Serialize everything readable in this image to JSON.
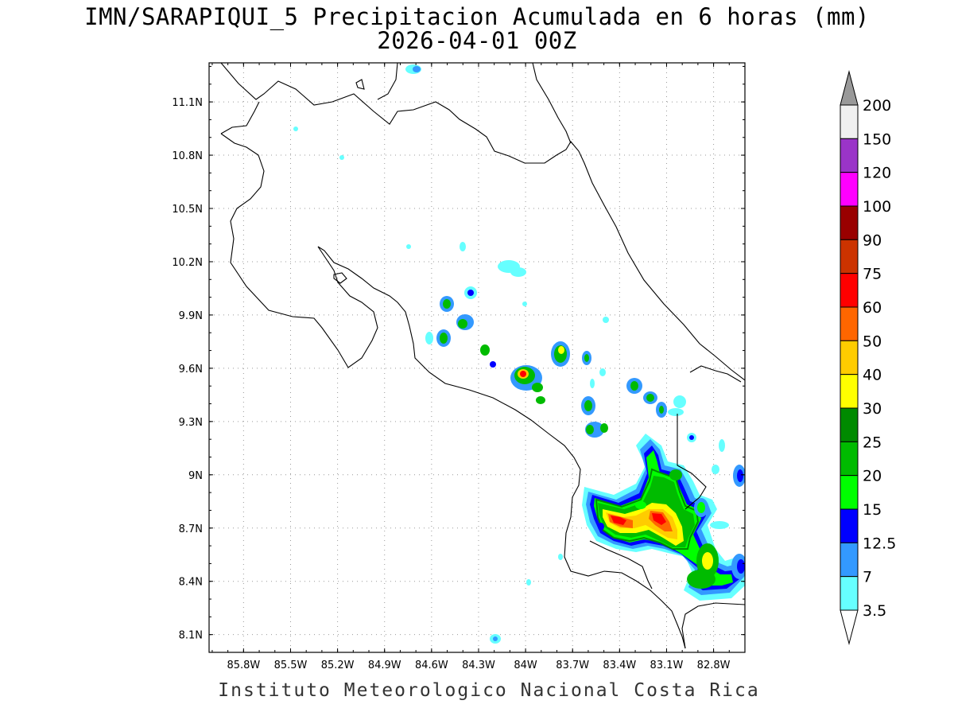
{
  "title_line1": "IMN/SARAPIQUI_5 Precipitacion Acumulada en 6 horas (mm)",
  "title_line2": "2026-04-01 00Z",
  "footer": "Instituto Meteorologico Nacional Costa Rica",
  "map": {
    "lon_range": [
      -86.02,
      -82.6
    ],
    "lat_range": [
      8.0,
      11.32
    ],
    "lat_ticks": [
      "11.1N",
      "10.8N",
      "10.5N",
      "10.2N",
      "9.9N",
      "9.6N",
      "9.3N",
      "9N",
      "8.7N",
      "8.4N",
      "8.1N"
    ],
    "lat_tick_values": [
      11.1,
      10.8,
      10.5,
      10.2,
      9.9,
      9.6,
      9.3,
      9.0,
      8.7,
      8.4,
      8.1
    ],
    "lon_ticks": [
      "85.8W",
      "85.5W",
      "85.2W",
      "84.9W",
      "84.6W",
      "84.3W",
      "84W",
      "83.7W",
      "83.4W",
      "83.1W",
      "82.8W"
    ],
    "lon_tick_values": [
      -85.8,
      -85.5,
      -85.2,
      -84.9,
      -84.6,
      -84.3,
      -84.0,
      -83.7,
      -83.4,
      -83.1,
      -82.8
    ],
    "gridlines": "dotted"
  },
  "colorbar": {
    "labels": [
      "200",
      "150",
      "120",
      "100",
      "90",
      "75",
      "60",
      "50",
      "40",
      "30",
      "25",
      "20",
      "15",
      "12.5",
      "7",
      "3.5"
    ],
    "colors": [
      "#f0f0f0",
      "#9a34c8",
      "#ff00ff",
      "#990000",
      "#cc3300",
      "#ff0000",
      "#ff6600",
      "#ffcc00",
      "#ffff00",
      "#008a00",
      "#00bb00",
      "#00ff00",
      "#0000ff",
      "#3399ff",
      "#66ffff"
    ],
    "over_color": "#999999",
    "under_color": "#ffffff"
  },
  "precip_colors": {
    "light": "#66ffff",
    "moderate": "#3399ff",
    "blue": "#0000ff",
    "green": "#00ff00",
    "mid_green": "#00bb00",
    "dark_green": "#008a00",
    "yellow": "#ffff00",
    "gold": "#ffcc00",
    "orange": "#ff6600",
    "red": "#ff0000"
  }
}
